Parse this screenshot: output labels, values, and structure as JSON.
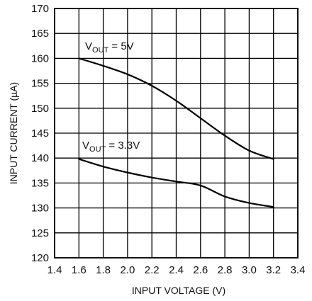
{
  "chart_data": {
    "type": "line",
    "title": "",
    "xlabel": "INPUT VOLTAGE (V)",
    "ylabel": "INPUT CURRENT (µA)",
    "xlim": [
      1.4,
      3.4
    ],
    "ylim": [
      120,
      170
    ],
    "x_ticks": [
      "1.4",
      "1.6",
      "1.8",
      "2.0",
      "2.2",
      "2.4",
      "2.6",
      "2.8",
      "3.0",
      "3.2",
      "3.4"
    ],
    "y_ticks": [
      "120",
      "125",
      "130",
      "135",
      "140",
      "145",
      "150",
      "155",
      "160",
      "165",
      "170"
    ],
    "grid": true,
    "series": [
      {
        "name": "VOUT = 5V",
        "label_main": "V",
        "label_sub": "OUT",
        "label_rest": " = 5V",
        "x": [
          1.6,
          1.8,
          2.0,
          2.2,
          2.4,
          2.6,
          2.8,
          3.0,
          3.2
        ],
        "y": [
          160,
          158.5,
          156.8,
          154.5,
          151.5,
          148.0,
          144.5,
          141.5,
          139.8
        ]
      },
      {
        "name": "VOUT = 3.3V",
        "label_main": "V",
        "label_sub": "OUT",
        "label_rest": " = 3.3V",
        "x": [
          1.6,
          1.8,
          2.0,
          2.2,
          2.4,
          2.6,
          2.8,
          3.0,
          3.2
        ],
        "y": [
          139.8,
          138.3,
          137.1,
          136.1,
          135.3,
          134.5,
          132.3,
          131.0,
          130.2
        ]
      }
    ]
  }
}
